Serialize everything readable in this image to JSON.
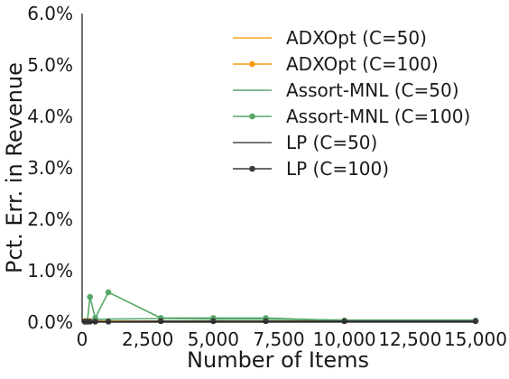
{
  "chart_data": {
    "type": "line",
    "xlabel": "Number of Items",
    "ylabel": "Pct. Err. in Revenue",
    "xlim": [
      0,
      15000
    ],
    "ylim": [
      0,
      0.06
    ],
    "x_ticks": [
      0,
      2500,
      5000,
      7500,
      10000,
      12500,
      15000
    ],
    "x_tick_labels": [
      "0",
      "2,500",
      "5,000",
      "7,500",
      "10,000",
      "12,500",
      "15,000"
    ],
    "y_ticks": [
      0,
      0.01,
      0.02,
      0.03,
      0.04,
      0.05,
      0.06
    ],
    "y_tick_labels": [
      "0.0%",
      "1.0%",
      "2.0%",
      "3.0%",
      "4.0%",
      "5.0%",
      "6.0%"
    ],
    "grid": false,
    "legend_position": "top-right",
    "x": [
      100,
      200,
      300,
      500,
      1000,
      3000,
      5000,
      7000,
      10000,
      15000
    ],
    "series": [
      {
        "name": "ADXOpt (C=50)",
        "color": "#f5a623",
        "marker": false,
        "values": [
          0.0002,
          0.0002,
          0.0002,
          0.0002,
          0.0002,
          0.0002,
          0.0002,
          0.0002,
          0.0002,
          0.0002
        ]
      },
      {
        "name": "ADXOpt (C=100)",
        "color": "#f59a0c",
        "marker": true,
        "values": [
          0.0002,
          0.0002,
          0.0002,
          0.0002,
          0.0002,
          0.0002,
          0.0002,
          0.0002,
          0.0002,
          0.0002
        ]
      },
      {
        "name": "Assort-MNL (C=50)",
        "color": "#5aa86b",
        "marker": false,
        "values": [
          0.0004,
          0.0004,
          0.0004,
          0.0005,
          0.0006,
          0.0007,
          0.0006,
          0.0006,
          0.0004,
          0.0004
        ]
      },
      {
        "name": "Assort-MNL (C=100)",
        "color": "#55a868",
        "marker": true,
        "values": [
          0.0001,
          0.0001,
          0.0049,
          0.0008,
          0.0058,
          0.0008,
          0.0008,
          0.0008,
          0.0003,
          0.0003
        ]
      },
      {
        "name": "LP (C=50)",
        "color": "#4a4a4a",
        "marker": false,
        "values": [
          0.0001,
          0.0001,
          0.0001,
          0.0001,
          0.0001,
          0.0001,
          0.0001,
          0.0001,
          0.0001,
          0.0001
        ]
      },
      {
        "name": "LP (C=100)",
        "color": "#3a3a3a",
        "marker": true,
        "values": [
          0.0001,
          0.0001,
          0.0001,
          0.0001,
          0.0001,
          0.0002,
          0.0002,
          0.0002,
          0.0002,
          0.0002
        ]
      }
    ]
  }
}
